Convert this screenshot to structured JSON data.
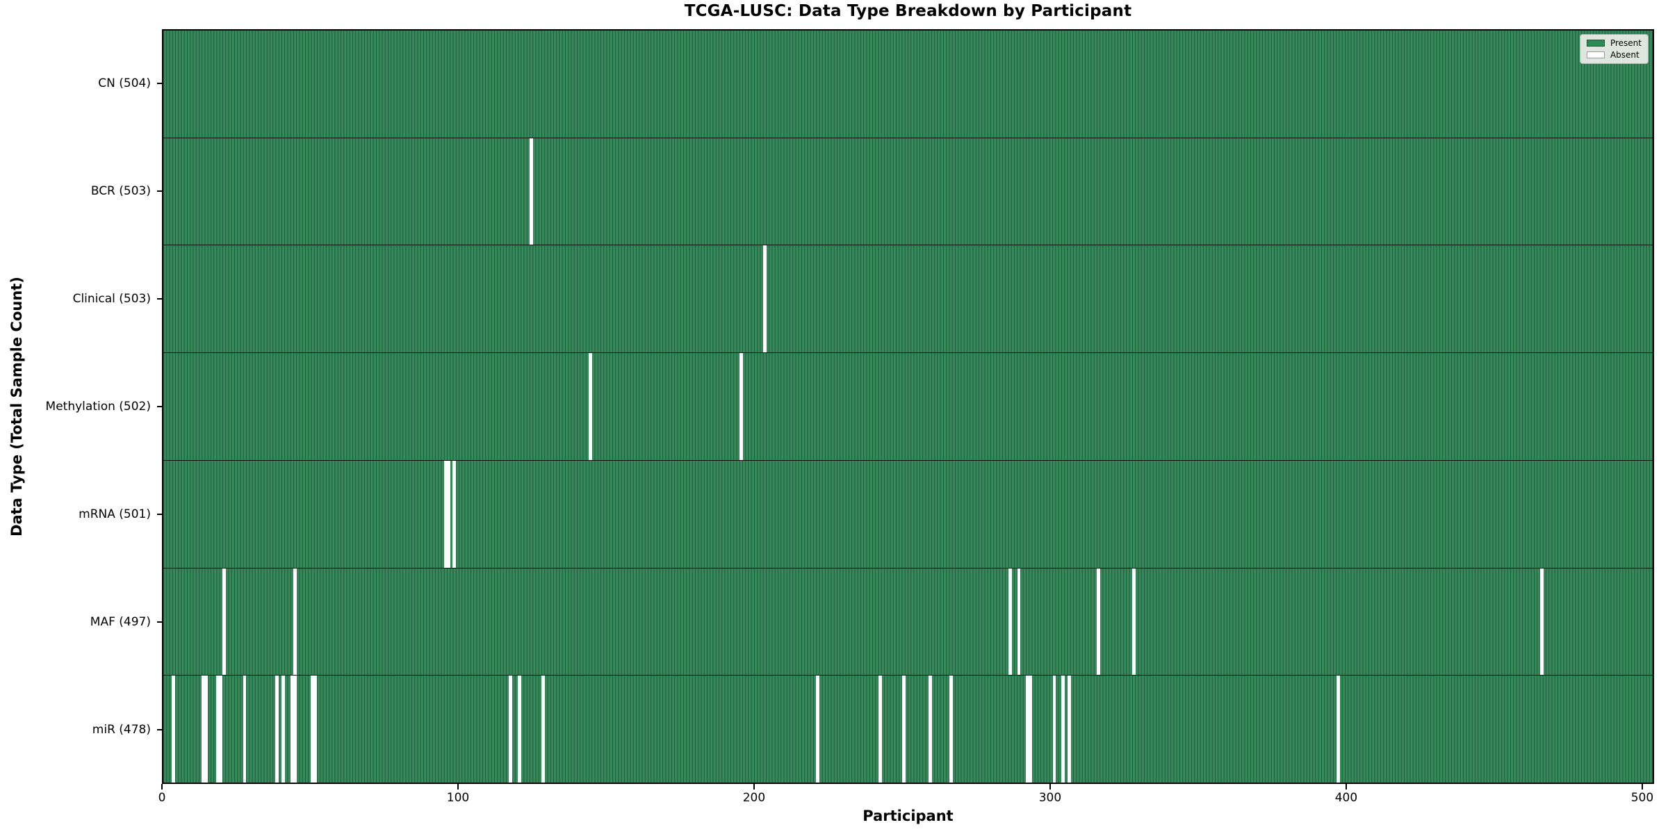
{
  "title": "TCGA-LUSC: Data Type Breakdown by Participant",
  "axes": {
    "x_label": "Participant",
    "y_label": "Data Type (Total Sample Count)",
    "x_ticks": [
      0,
      100,
      200,
      300,
      400,
      500
    ],
    "x_range": [
      0,
      504
    ]
  },
  "legend": {
    "position": "upper right",
    "items": [
      {
        "label": "Present",
        "color": "#2e8b57"
      },
      {
        "label": "Absent",
        "color": "#ffffff"
      }
    ]
  },
  "colors": {
    "present_fill": "#37895b",
    "cell_edge": "#1a5c3a",
    "absent": "#ffffff",
    "plot_border": "#000000",
    "background": "#ffffff"
  },
  "chart_data": {
    "type": "heatmap",
    "title": "TCGA-LUSC: Data Type Breakdown by Participant",
    "xlabel": "Participant",
    "ylabel": "Data Type (Total Sample Count)",
    "x_ticks": [
      0,
      100,
      200,
      300,
      400,
      500
    ],
    "n_participants": 504,
    "legend": [
      "Present",
      "Absent"
    ],
    "grid": false,
    "rows": [
      {
        "key": "cn",
        "label": "CN (504)",
        "data_type": "CN",
        "total": 504,
        "absent_participants": []
      },
      {
        "key": "bcr",
        "label": "BCR (503)",
        "data_type": "BCR",
        "total": 503,
        "absent_participants": [
          124
        ]
      },
      {
        "key": "clinical",
        "label": "Clinical (503)",
        "data_type": "Clinical",
        "total": 503,
        "absent_participants": [
          203
        ]
      },
      {
        "key": "methylation",
        "label": "Methylation (502)",
        "data_type": "Methylation",
        "total": 502,
        "absent_participants": [
          144,
          195
        ]
      },
      {
        "key": "mrna",
        "label": "mRNA (501)",
        "data_type": "mRNA",
        "total": 501,
        "absent_participants": [
          95,
          96,
          98
        ]
      },
      {
        "key": "maf",
        "label": "MAF (497)",
        "data_type": "MAF",
        "total": 497,
        "absent_participants": [
          20,
          44,
          286,
          289,
          316,
          328,
          466
        ]
      },
      {
        "key": "mir",
        "label": "miR (478)",
        "data_type": "miR",
        "total": 478,
        "absent_participants": [
          3,
          13,
          14,
          18,
          19,
          27,
          38,
          40,
          43,
          44,
          50,
          51,
          117,
          120,
          128,
          221,
          242,
          250,
          259,
          266,
          292,
          293,
          301,
          304,
          306,
          397
        ]
      }
    ]
  }
}
